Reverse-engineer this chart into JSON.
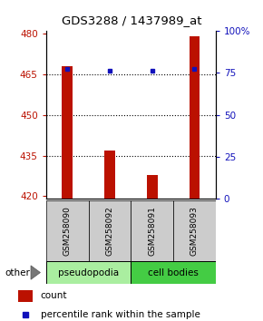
{
  "title": "GDS3288 / 1437989_at",
  "samples": [
    "GSM258090",
    "GSM258092",
    "GSM258091",
    "GSM258093"
  ],
  "bar_values": [
    468,
    437,
    428,
    479
  ],
  "percentile_values": [
    77,
    76,
    76,
    77
  ],
  "ylim_left": [
    419,
    481
  ],
  "ylim_right": [
    0,
    100
  ],
  "yticks_left": [
    420,
    435,
    450,
    465,
    480
  ],
  "yticks_right": [
    0,
    25,
    50,
    75,
    100
  ],
  "ytick_right_labels": [
    "0",
    "25",
    "50",
    "75",
    "100%"
  ],
  "bar_color": "#BB1100",
  "dot_color": "#1111BB",
  "bar_bottom": 419,
  "bar_width": 0.25,
  "gridlines": [
    435,
    450,
    465
  ],
  "pseudopodia_color": "#AAEEA0",
  "cell_bodies_color": "#44CC44",
  "legend_count_color": "#BB1100",
  "legend_pct_color": "#1111BB"
}
